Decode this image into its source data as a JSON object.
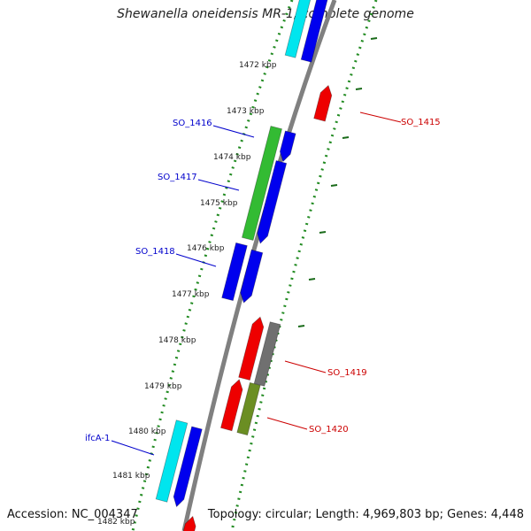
{
  "title": "Shewanella oneidensis MR-1, complete genome",
  "footer": {
    "accession": "Accession: NC_004347",
    "summary": "Topology: circular; Length: 4,969,803 bp; Genes: 4,448"
  },
  "scale_ticks": [
    "1472 kbp",
    "1473 kbp",
    "1474 kbp",
    "1475 kbp",
    "1476 kbp",
    "1477 kbp",
    "1478 kbp",
    "1479 kbp",
    "1480 kbp",
    "1481 kbp",
    "1482 kbp"
  ],
  "gene_labels": [
    {
      "name": "SO_1415",
      "side": "right",
      "color": "#cc0000"
    },
    {
      "name": "SO_1416",
      "side": "left",
      "color": "#0000cc"
    },
    {
      "name": "SO_1417",
      "side": "left",
      "color": "#0000cc"
    },
    {
      "name": "SO_1418",
      "side": "left",
      "color": "#0000cc"
    },
    {
      "name": "SO_1419",
      "side": "right",
      "color": "#cc0000"
    },
    {
      "name": "SO_1420",
      "side": "right",
      "color": "#cc0000"
    },
    {
      "name": "ifcA-1",
      "side": "left",
      "color": "#0000cc"
    }
  ],
  "colors": {
    "backbone": "#808080",
    "dotted_track": "#228b22",
    "forward_gene": "#0000ee",
    "reverse_gene": "#ee0000",
    "highlight_green": "#33bb33",
    "highlight_cyan": "#00e5ee",
    "gray_gene": "#707070",
    "olive_gene": "#6b8e23"
  }
}
